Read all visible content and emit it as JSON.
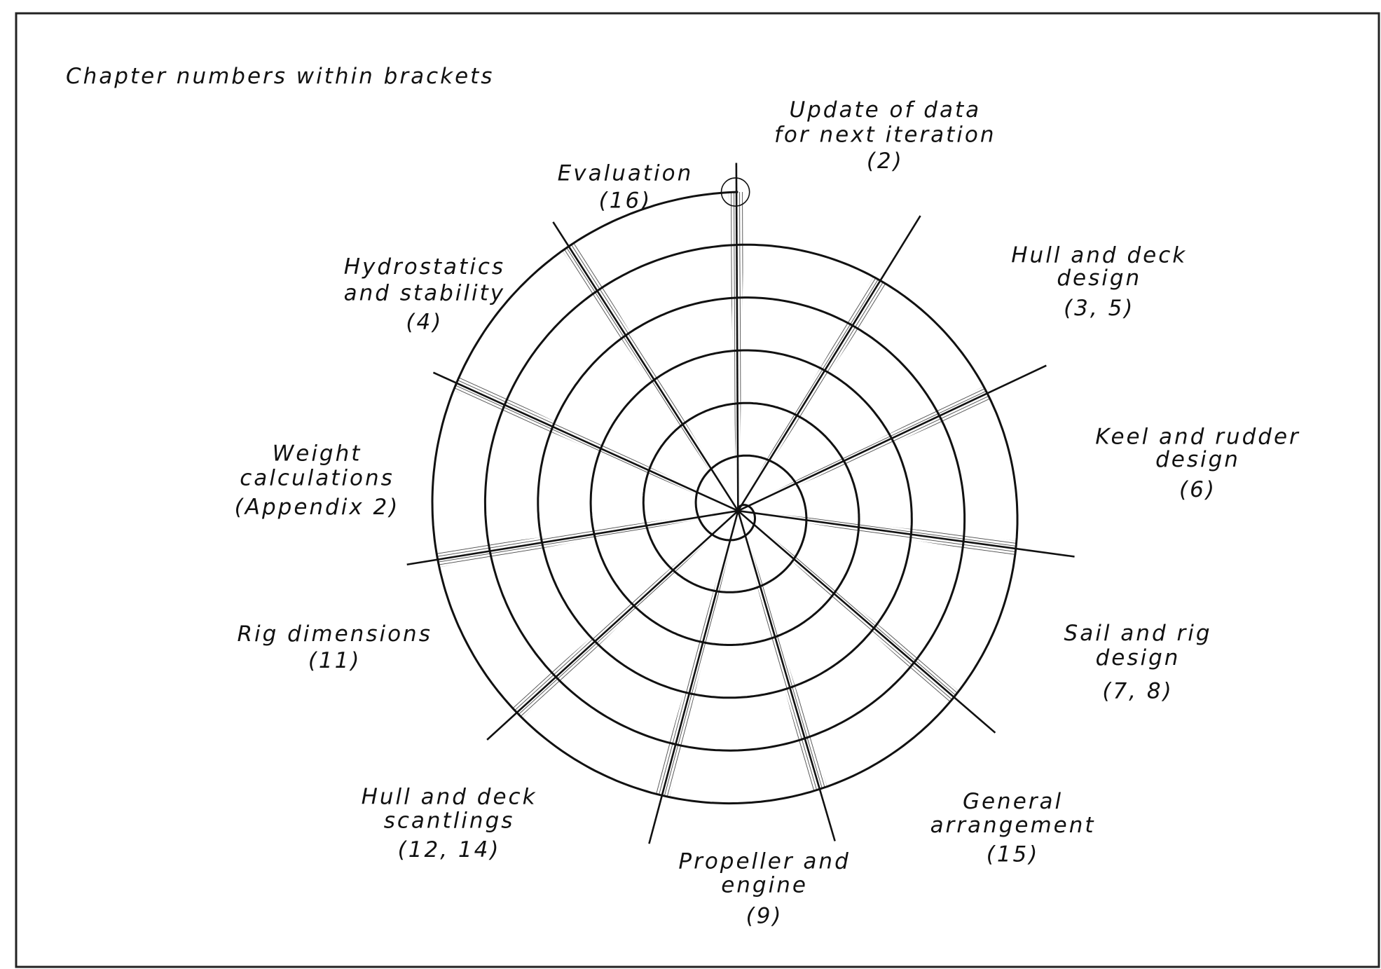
{
  "note": "Chapter numbers within brackets",
  "labels": [
    {
      "lines": [
        "Update of data",
        "for next iteration",
        "(2)"
      ]
    },
    {
      "lines": [
        "Hull and deck",
        "design",
        "(3, 5)"
      ]
    },
    {
      "lines": [
        "Keel and rudder",
        "design",
        "(6)"
      ]
    },
    {
      "lines": [
        "Sail and rig",
        "design",
        "(7, 8)"
      ]
    },
    {
      "lines": [
        "General",
        "arrangement",
        "(15)"
      ]
    },
    {
      "lines": [
        "Propeller and",
        "engine",
        "(9)"
      ]
    },
    {
      "lines": [
        "Hull and deck",
        "scantlings",
        "(12, 14)"
      ]
    },
    {
      "lines": [
        "Rig dimensions",
        "(11)"
      ]
    },
    {
      "lines": [
        "Weight",
        "calculations",
        "(Appendix 2)"
      ]
    },
    {
      "lines": [
        "Hydrostatics",
        "and stability",
        "(4)"
      ]
    },
    {
      "lines": [
        "Evaluation",
        "(16)"
      ]
    }
  ]
}
